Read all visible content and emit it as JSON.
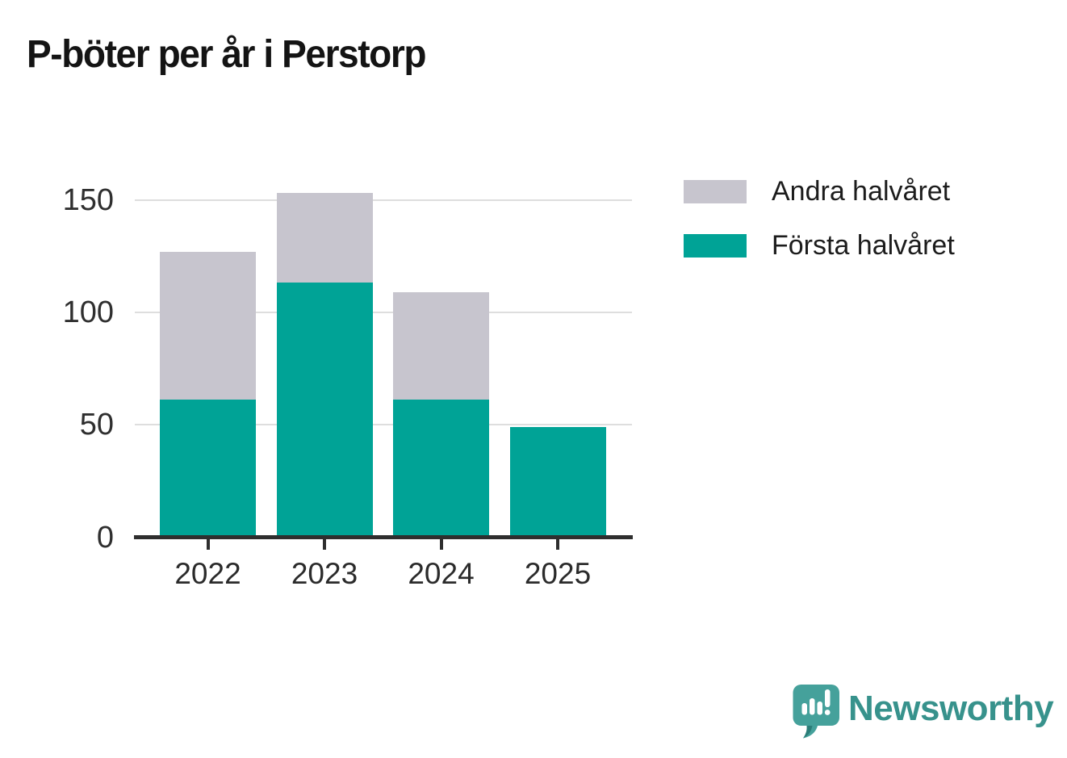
{
  "title": "P-böter per år i Perstorp",
  "chart_data": {
    "type": "bar",
    "stacked": true,
    "title": "P-böter per år i Perstorp",
    "categories": [
      "2022",
      "2023",
      "2024",
      "2025"
    ],
    "series": [
      {
        "name": "Första halvåret",
        "color": "#00a396",
        "values": [
          62,
          114,
          62,
          49
        ]
      },
      {
        "name": "Andra halvåret",
        "color": "#c7c5ce",
        "values": [
          65,
          39,
          47,
          0
        ]
      }
    ],
    "totals": [
      127,
      153,
      109,
      49
    ],
    "xlabel": "",
    "ylabel": "",
    "y_ticks": [
      0,
      50,
      100,
      150
    ],
    "ylim": [
      0,
      160
    ],
    "grid": "horizontal",
    "gridline_color": "#dedede",
    "axis_color": "#2e2e2e",
    "legend_position": "top-right",
    "legend_order_top_to_bottom": [
      "Andra halvåret",
      "Första halvåret"
    ]
  },
  "legend": {
    "items": [
      {
        "label": "Andra halvåret",
        "color": "#c7c5ce"
      },
      {
        "label": "Första halvåret",
        "color": "#00a396"
      }
    ]
  },
  "branding": {
    "logo_text": "Newsworthy",
    "logo_text_color": "#37928c",
    "logo_bubble_color": "#45a19b",
    "logo_bubble_shadow_color": "#2b7d78",
    "logo_icon": "speech-bubble-with-bar-chart-and-exclamation"
  }
}
